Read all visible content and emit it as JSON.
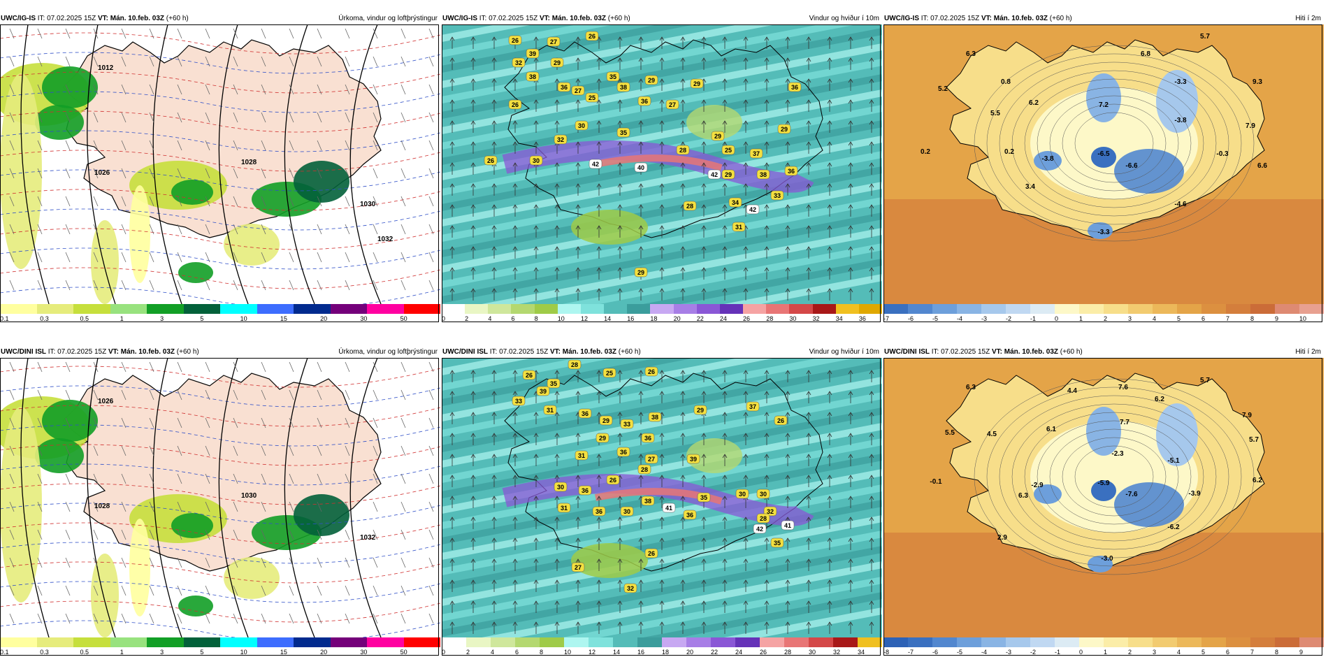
{
  "panels": [
    {
      "source": "UWC/IG-IS",
      "it_label": "IT:",
      "it_value": "07.02.2025 15Z",
      "vt_label": "VT:",
      "vt_value": "Mán. 10.feb. 03Z",
      "lead": "(+60 h)",
      "title": "Úrkoma, vindur og loftþrýstingur",
      "ticks": [
        "0.1",
        "0.3",
        "0.5",
        "1",
        "3",
        "5",
        "10",
        "15",
        "20",
        "30",
        "50"
      ],
      "colors": [
        "#ffff9f",
        "#e6ec7c",
        "#c6df3c",
        "#98e27e",
        "#129f26",
        "#02613a",
        "#00ffff",
        "#3d6dfe",
        "#012a8e",
        "#74007a",
        "#ff00a0",
        "#ff0000"
      ],
      "labels": [],
      "extra_labels": [
        "1012",
        "1026",
        "1028",
        "1030",
        "1032"
      ]
    },
    {
      "source": "UWC/IG-IS",
      "it_label": "IT:",
      "it_value": "07.02.2025 15Z",
      "vt_label": "VT:",
      "vt_value": "Mán. 10.feb. 03Z",
      "lead": "(+60 h)",
      "title": "Vindur og hviður í 10m",
      "ticks": [
        "0",
        "2",
        "4",
        "6",
        "8",
        "10",
        "12",
        "14",
        "16",
        "18",
        "20",
        "22",
        "24",
        "26",
        "28",
        "30",
        "32",
        "34",
        "36"
      ],
      "colors": [
        "#ffffff",
        "#e9f6c4",
        "#cfe79c",
        "#b4d870",
        "#9fcb48",
        "#aef6f0",
        "#7fe2dc",
        "#54bcb8",
        "#3b9d9c",
        "#c7a8f2",
        "#a77ee6",
        "#8a57d6",
        "#6532b8",
        "#f5a3a3",
        "#e87575",
        "#d44848",
        "#a81818",
        "#f0c020",
        "#e0a800"
      ],
      "labels": [
        "26",
        "27",
        "26",
        "32",
        "39",
        "29",
        "38",
        "36",
        "27",
        "35",
        "38",
        "29",
        "25",
        "36",
        "29",
        "36",
        "26",
        "32",
        "30",
        "35",
        "27",
        "29",
        "25",
        "29",
        "26",
        "30",
        "42",
        "40",
        "28",
        "37",
        "36",
        "29",
        "28",
        "42",
        "38",
        "42",
        "34",
        "31",
        "33",
        "29"
      ],
      "extra_labels": []
    },
    {
      "source": "UWC/IG-IS",
      "it_label": "IT:",
      "it_value": "07.02.2025 15Z",
      "vt_label": "VT:",
      "vt_value": "Mán. 10.feb. 03Z",
      "lead": "(+60 h)",
      "title": "Hiti í 2m",
      "ticks": [
        "-7",
        "-6",
        "-5",
        "-4",
        "-3",
        "-2",
        "-1",
        "0",
        "1",
        "2",
        "3",
        "4",
        "5",
        "6",
        "7",
        "8",
        "9",
        "10"
      ],
      "colors": [
        "#3a70c0",
        "#5287cf",
        "#6d9fdb",
        "#89b4e4",
        "#a6c8ec",
        "#c0d8f2",
        "#dcebf4",
        "#fdf8c8",
        "#fbeda8",
        "#f7de8a",
        "#f2cb70",
        "#ecb85a",
        "#e4a448",
        "#dc9040",
        "#d47e3c",
        "#cb6c38",
        "#de8a72",
        "#e8a090"
      ],
      "labels": [
        "5.7",
        "6.3",
        "6.8",
        "5.2",
        "0.8",
        "-3.3",
        "9.3",
        "6.2",
        "7.2",
        "5.5",
        "-3.8",
        "7.9",
        "0.2",
        "0.2",
        "-3.8",
        "-6.5",
        "-6.6",
        "-0.3",
        "6.6",
        "3.4",
        "-4.6",
        "-3.3"
      ],
      "extra_labels": []
    },
    {
      "source": "UWC/DINI ISL",
      "it_label": "IT:",
      "it_value": "07.02.2025 15Z",
      "vt_label": "VT:",
      "vt_value": "Mán. 10.feb. 03Z",
      "lead": "(+60 h)",
      "title": "Úrkoma, vindur og loftþrýstingur",
      "ticks": [
        "0.1",
        "0.3",
        "0.5",
        "1",
        "3",
        "5",
        "10",
        "15",
        "20",
        "30",
        "50"
      ],
      "colors": [
        "#ffff9f",
        "#e6ec7c",
        "#c6df3c",
        "#98e27e",
        "#129f26",
        "#02613a",
        "#00ffff",
        "#3d6dfe",
        "#012a8e",
        "#74007a",
        "#ff00a0",
        "#ff0000"
      ],
      "labels": [],
      "extra_labels": [
        "1026",
        "1028",
        "1030",
        "1032"
      ]
    },
    {
      "source": "UWC/DINI ISL",
      "it_label": "IT:",
      "it_value": "07.02.2025 15Z",
      "vt_label": "VT:",
      "vt_value": "Mán. 10.feb. 03Z",
      "lead": "(+60 h)",
      "title": "Vindur og hviður í 10m",
      "ticks": [
        "0",
        "2",
        "4",
        "6",
        "8",
        "10",
        "12",
        "14",
        "16",
        "18",
        "20",
        "22",
        "24",
        "26",
        "28",
        "30",
        "32",
        "34"
      ],
      "colors": [
        "#ffffff",
        "#e9f6c4",
        "#cfe79c",
        "#b4d870",
        "#9fcb48",
        "#aef6f0",
        "#7fe2dc",
        "#54bcb8",
        "#3b9d9c",
        "#c7a8f2",
        "#a77ee6",
        "#8a57d6",
        "#6532b8",
        "#f5a3a3",
        "#e87575",
        "#d44848",
        "#a81818",
        "#f0c020"
      ],
      "labels": [
        "26",
        "28",
        "25",
        "26",
        "35",
        "39",
        "33",
        "31",
        "36",
        "29",
        "33",
        "38",
        "29",
        "36",
        "29",
        "37",
        "26",
        "27",
        "36",
        "31",
        "39",
        "28",
        "30",
        "36",
        "26",
        "35",
        "31",
        "36",
        "30",
        "30",
        "30",
        "38",
        "41",
        "36",
        "32",
        "42",
        "41",
        "35",
        "28",
        "26",
        "27",
        "32"
      ],
      "extra_labels": []
    },
    {
      "source": "UWC/DINI ISL",
      "it_label": "IT:",
      "it_value": "07.02.2025 15Z",
      "vt_label": "VT:",
      "vt_value": "Mán. 10.feb. 03Z",
      "lead": "(+60 h)",
      "title": "Hiti í 2m",
      "ticks": [
        "-8",
        "-7",
        "-6",
        "-5",
        "-4",
        "-3",
        "-2",
        "-1",
        "0",
        "1",
        "2",
        "3",
        "4",
        "5",
        "6",
        "7",
        "8",
        "9"
      ],
      "colors": [
        "#2d62b6",
        "#3a70c0",
        "#5287cf",
        "#6d9fdb",
        "#89b4e4",
        "#a6c8ec",
        "#c0d8f2",
        "#dcebf4",
        "#fdf8c8",
        "#fbeda8",
        "#f7de8a",
        "#f2cb70",
        "#ecb85a",
        "#e4a448",
        "#dc9040",
        "#d47e3c",
        "#cb6c38",
        "#de8a72"
      ],
      "labels": [
        "6.3",
        "4.4",
        "7.6",
        "6.2",
        "5.7",
        "7.9",
        "5.5",
        "4.5",
        "7.7",
        "6.1",
        "-2.3",
        "-5.1",
        "5.7",
        "-0.1",
        "6.3",
        "-2.9",
        "-5.9",
        "-7.6",
        "-3.9",
        "6.2",
        "2.9",
        "-6.2",
        "-3.0"
      ],
      "extra_labels": []
    }
  ]
}
